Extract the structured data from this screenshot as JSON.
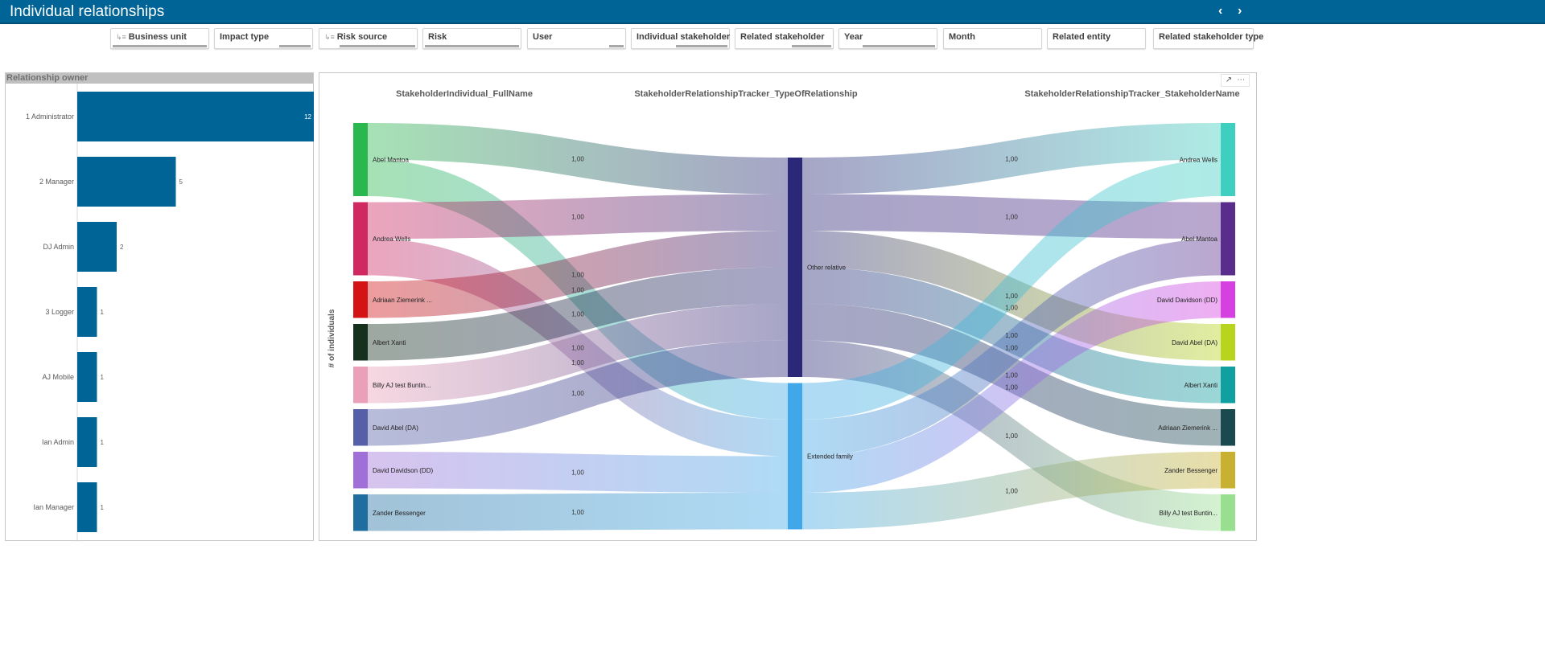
{
  "header": {
    "title": "Individual relationships",
    "prev_icon": "chevron-left",
    "next_icon": "chevron-right"
  },
  "filters": [
    {
      "label": "Business unit",
      "icon": "drill-down-icon",
      "excluded_fraction": 1.0
    },
    {
      "label": "Impact type",
      "icon": "",
      "excluded_fraction": 0.33
    },
    {
      "label": "Risk source",
      "icon": "drill-down-icon",
      "excluded_fraction": 0.8
    },
    {
      "label": "Risk",
      "icon": "",
      "excluded_fraction": 1.0
    },
    {
      "label": "User",
      "icon": "",
      "excluded_fraction": 0.15
    },
    {
      "label": "Individual stakeholder",
      "icon": "",
      "excluded_fraction": 0.55
    },
    {
      "label": "Related stakeholder",
      "icon": "",
      "excluded_fraction": 0.42
    },
    {
      "label": "Year",
      "icon": "",
      "excluded_fraction": 0.77
    },
    {
      "label": "Month",
      "icon": "",
      "excluded_fraction": 0
    },
    {
      "label": "Related entity",
      "icon": "",
      "excluded_fraction": 0
    },
    {
      "label": "Related stakeholder type",
      "icon": "",
      "excluded_fraction": 0
    }
  ],
  "chart_data": [
    {
      "type": "bar",
      "orientation": "horizontal",
      "title": "Relationship owner",
      "categories": [
        "1 Administrator",
        "2 Manager",
        "DJ Admin",
        "3 Logger",
        "AJ Mobile",
        "Ian Admin",
        "Ian Manager"
      ],
      "values": [
        12,
        5,
        2,
        1,
        1,
        1,
        1
      ],
      "color": "#006496",
      "xlim": [
        0,
        12
      ]
    },
    {
      "type": "sankey",
      "ylabel": "# of individuals",
      "columns": [
        "StakeholderIndividual_FullName",
        "StakeholderRelationshipTracker_TypeOfRelationship",
        "StakeholderRelationshipTracker_StakeholderName"
      ],
      "nodes": [
        {
          "id": "L1",
          "col": 0,
          "name": "Abel Mantoa",
          "color": "#2ab84e"
        },
        {
          "id": "L2",
          "col": 0,
          "name": "Andrea Wells",
          "color": "#d02860"
        },
        {
          "id": "L3",
          "col": 0,
          "name": "Adriaan Ziemerink ...",
          "color": "#d41414"
        },
        {
          "id": "L4",
          "col": 0,
          "name": "Albert Xanti",
          "color": "#16301e"
        },
        {
          "id": "L5",
          "col": 0,
          "name": "Billy AJ test Buntin...",
          "color": "#eaa0b8"
        },
        {
          "id": "L6",
          "col": 0,
          "name": "David Abel (DA)",
          "color": "#5560a8"
        },
        {
          "id": "L7",
          "col": 0,
          "name": "David Davidson (DD)",
          "color": "#a070d8"
        },
        {
          "id": "L8",
          "col": 0,
          "name": "Zander Bessenger",
          "color": "#1e6ea0"
        },
        {
          "id": "M1",
          "col": 1,
          "name": "Other relative",
          "color": "#2c2878"
        },
        {
          "id": "M2",
          "col": 1,
          "name": "Extended family",
          "color": "#40a8e8"
        },
        {
          "id": "R1",
          "col": 2,
          "name": "Andrea Wells",
          "color": "#3ecfc0"
        },
        {
          "id": "R2",
          "col": 2,
          "name": "Abel Mantoa",
          "color": "#5a2d8c"
        },
        {
          "id": "R3",
          "col": 2,
          "name": "David Davidson (DD)",
          "color": "#d63fe0"
        },
        {
          "id": "R4",
          "col": 2,
          "name": "David Abel (DA)",
          "color": "#b8d41c"
        },
        {
          "id": "R5",
          "col": 2,
          "name": "Albert Xanti",
          "color": "#10a0a0"
        },
        {
          "id": "R6",
          "col": 2,
          "name": "Adriaan Ziemerink ...",
          "color": "#1a4a50"
        },
        {
          "id": "R7",
          "col": 2,
          "name": "Zander Bessenger",
          "color": "#c8b030"
        },
        {
          "id": "R8",
          "col": 2,
          "name": "Billy AJ test Buntin...",
          "color": "#98e090"
        }
      ],
      "links": [
        {
          "s": "L1",
          "t": "M1",
          "v": 1,
          "label": "1,00"
        },
        {
          "s": "L1",
          "t": "M2",
          "v": 1,
          "label": "1,00"
        },
        {
          "s": "L2",
          "t": "M1",
          "v": 1,
          "label": "1,00"
        },
        {
          "s": "L2",
          "t": "M2",
          "v": 1,
          "label": "1,00"
        },
        {
          "s": "L3",
          "t": "M1",
          "v": 1,
          "label": "1,00"
        },
        {
          "s": "L4",
          "t": "M1",
          "v": 1,
          "label": "1,00"
        },
        {
          "s": "L5",
          "t": "M1",
          "v": 1,
          "label": "1,00"
        },
        {
          "s": "L6",
          "t": "M1",
          "v": 1,
          "label": "1,00"
        },
        {
          "s": "L7",
          "t": "M2",
          "v": 1,
          "label": "1,00"
        },
        {
          "s": "L8",
          "t": "M2",
          "v": 1,
          "label": "1,00"
        },
        {
          "s": "M1",
          "t": "R1",
          "v": 1,
          "label": "1,00"
        },
        {
          "s": "M1",
          "t": "R2",
          "v": 1,
          "label": "1,00"
        },
        {
          "s": "M1",
          "t": "R4",
          "v": 1,
          "label": "1,00"
        },
        {
          "s": "M1",
          "t": "R5",
          "v": 1,
          "label": "1,00"
        },
        {
          "s": "M1",
          "t": "R6",
          "v": 1,
          "label": "1,00"
        },
        {
          "s": "M1",
          "t": "R8",
          "v": 1,
          "label": "1,00"
        },
        {
          "s": "M2",
          "t": "R1",
          "v": 1,
          "label": "1,00"
        },
        {
          "s": "M2",
          "t": "R2",
          "v": 1,
          "label": "1,00"
        },
        {
          "s": "M2",
          "t": "R3",
          "v": 1,
          "label": "1,00"
        },
        {
          "s": "M2",
          "t": "R7",
          "v": 1,
          "label": "1,00"
        }
      ]
    }
  ]
}
